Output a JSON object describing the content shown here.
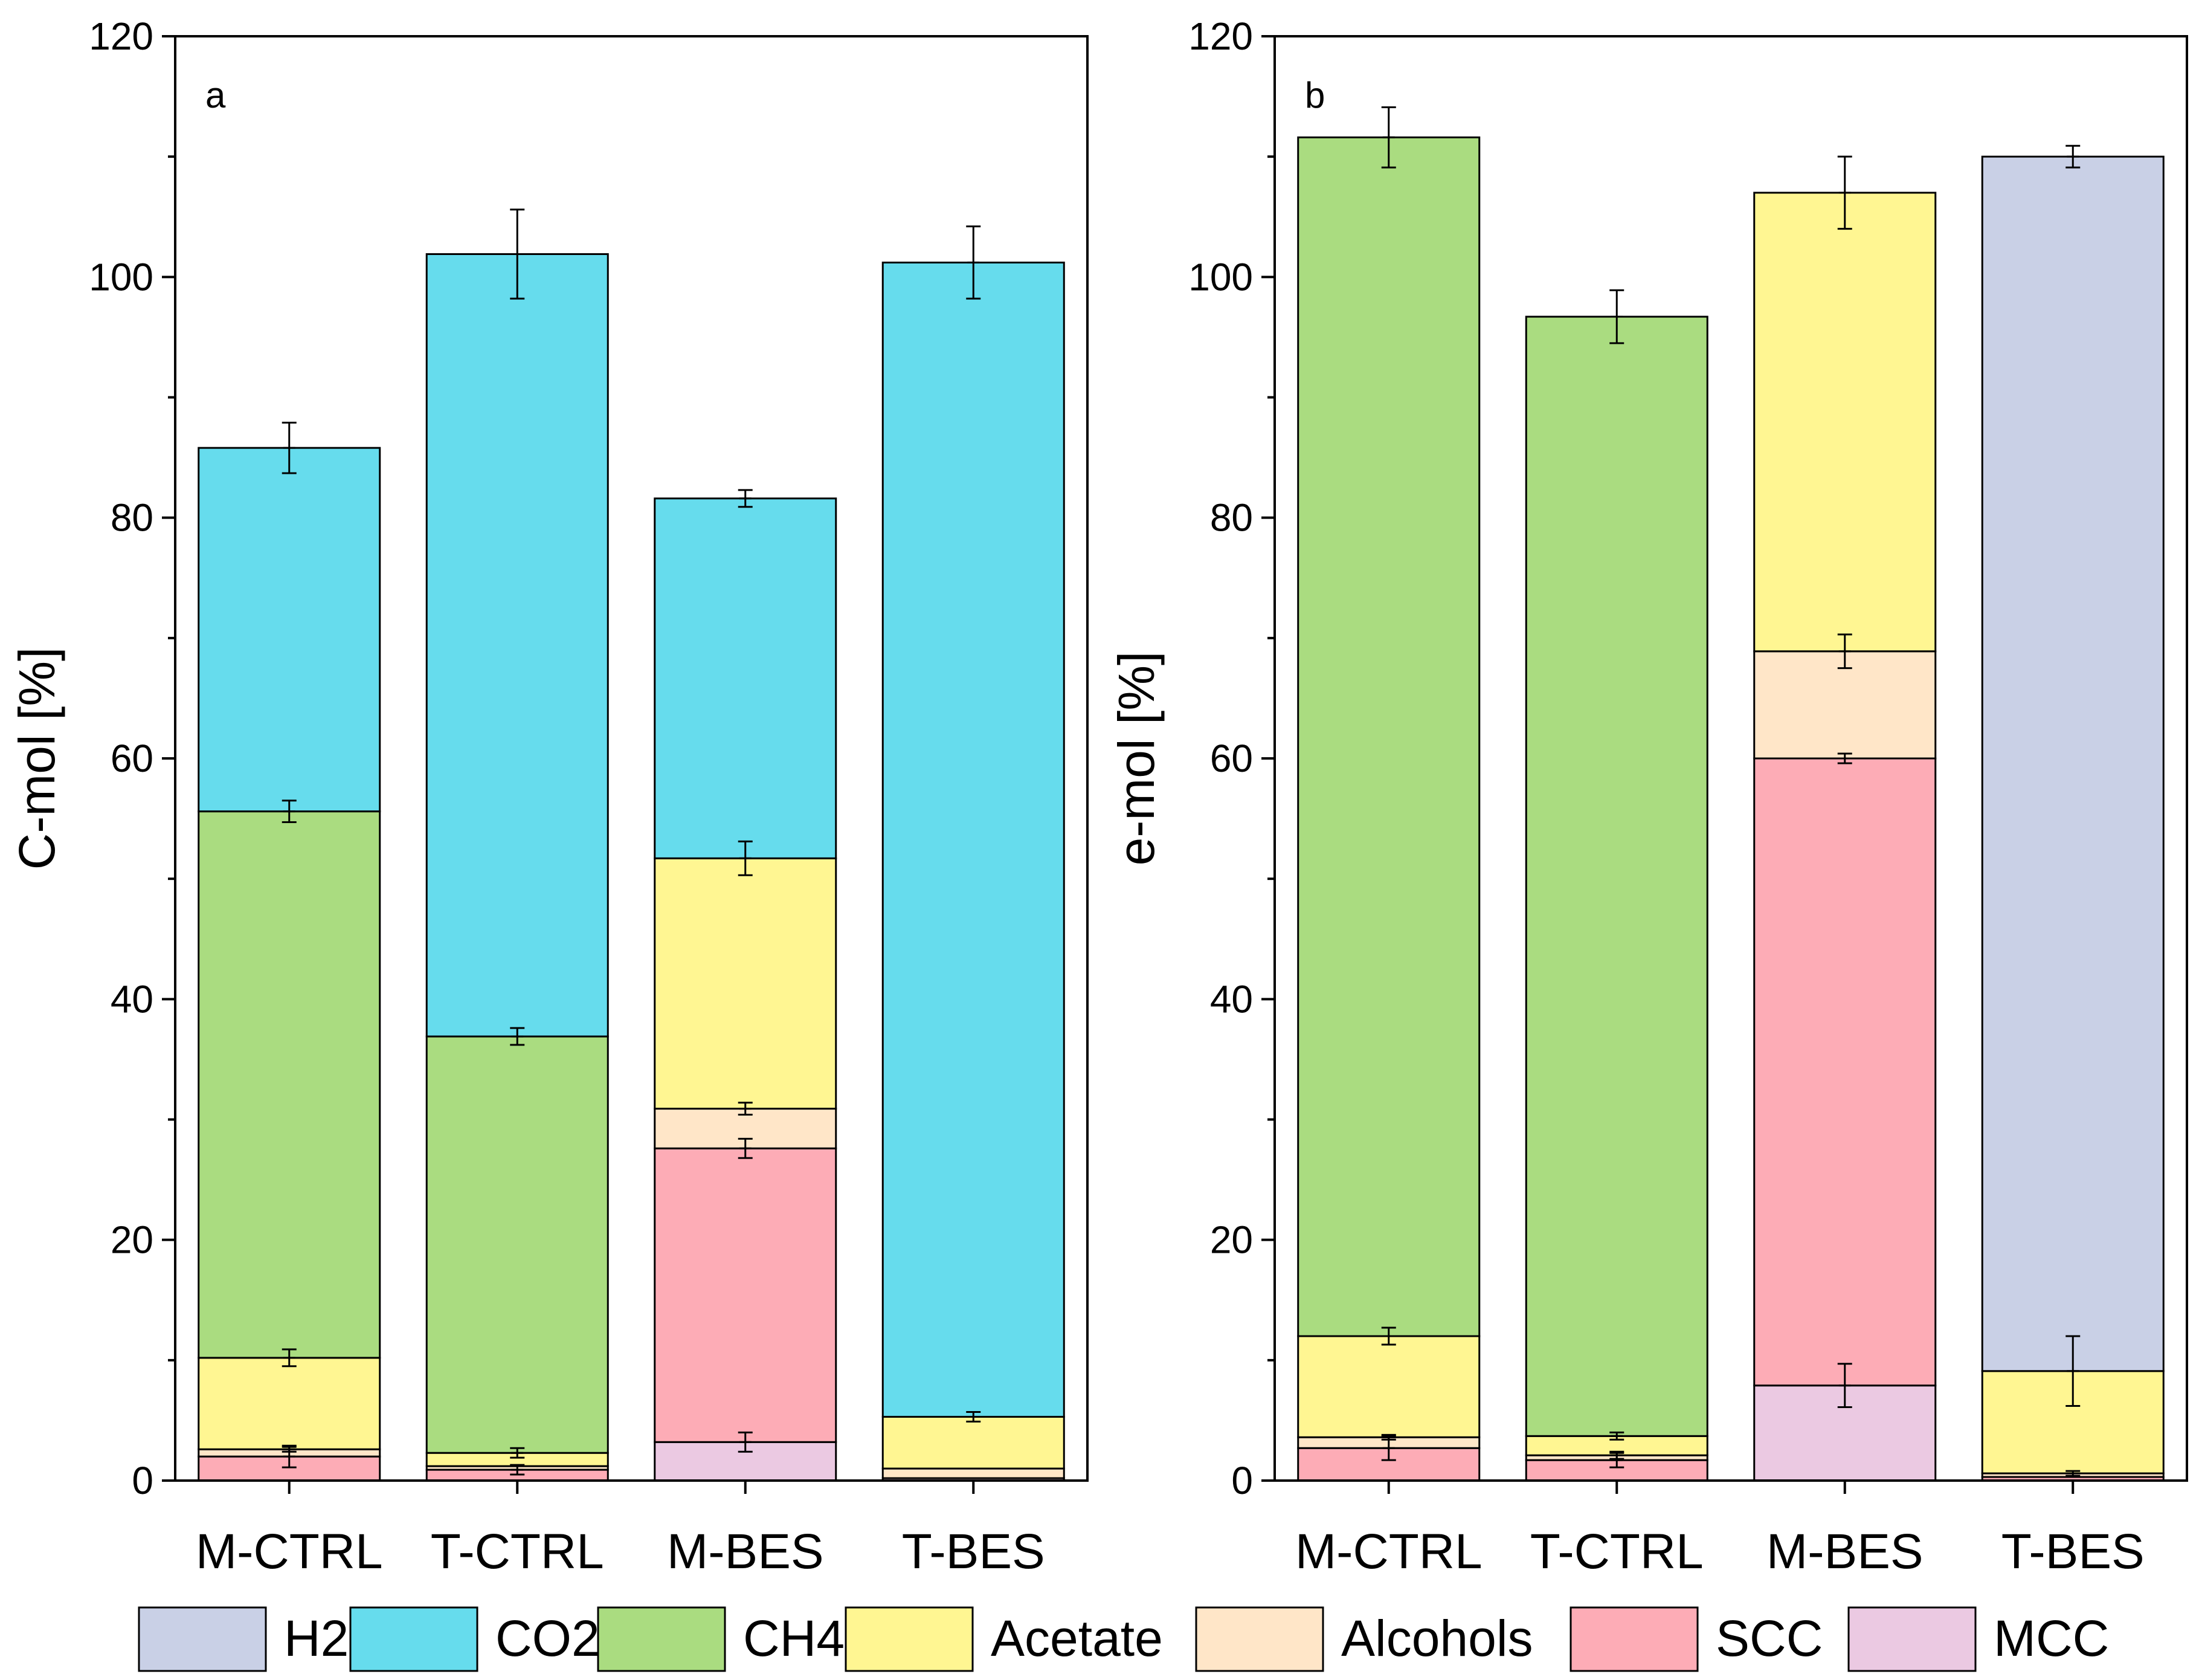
{
  "colors": {
    "H2": "#c9d0e6",
    "CO2": "#66dced",
    "CH4": "#aadc80",
    "Acetate": "#fff692",
    "Alcohols": "#ffe6c8",
    "SCC": "#fdacb6",
    "MCC": "#ebc9e2"
  },
  "legend": [
    "H2",
    "CO2",
    "CH4",
    "Acetate",
    "Alcohols",
    "SCC",
    "MCC"
  ],
  "chart_data": [
    {
      "type": "bar",
      "stacked": true,
      "panel_label": "a",
      "title": "",
      "xlabel": "",
      "ylabel": "C-mol [%]",
      "ylim": [
        0,
        120
      ],
      "yticks": [
        "0",
        "20",
        "40",
        "60",
        "80",
        "100",
        "120"
      ],
      "categories": [
        "M-CTRL",
        "T-CTRL",
        "M-BES",
        "T-BES"
      ],
      "series": [
        {
          "name": "MCC",
          "values": [
            0,
            0,
            3.2,
            0.2
          ],
          "errors": [
            0,
            0,
            0.8,
            0
          ]
        },
        {
          "name": "SCC",
          "values": [
            2.0,
            0.9,
            24.4,
            0
          ],
          "errors": [
            0.9,
            0.4,
            0.8,
            0
          ]
        },
        {
          "name": "Alcohols",
          "values": [
            0.6,
            0.3,
            3.3,
            0.8
          ],
          "errors": [
            0.2,
            0,
            0.5,
            0
          ]
        },
        {
          "name": "Acetate",
          "values": [
            7.6,
            1.1,
            20.8,
            4.3
          ],
          "errors": [
            0.7,
            0.4,
            1.4,
            0.4
          ]
        },
        {
          "name": "CH4",
          "values": [
            45.4,
            34.6,
            0,
            0
          ],
          "errors": [
            0.9,
            0.7,
            0,
            0
          ]
        },
        {
          "name": "CO2",
          "values": [
            30.2,
            65.0,
            29.9,
            95.9
          ],
          "errors": [
            2.1,
            3.7,
            0.7,
            3.0
          ]
        },
        {
          "name": "H2",
          "values": [
            0,
            0,
            0,
            0
          ],
          "errors": [
            0,
            0,
            0,
            0
          ]
        }
      ]
    },
    {
      "type": "bar",
      "stacked": true,
      "panel_label": "b",
      "title": "",
      "xlabel": "",
      "ylabel": "e-mol [%]",
      "ylim": [
        0,
        120
      ],
      "yticks": [
        "0",
        "20",
        "40",
        "60",
        "80",
        "100",
        "120"
      ],
      "categories": [
        "M-CTRL",
        "T-CTRL",
        "M-BES",
        "T-BES"
      ],
      "series": [
        {
          "name": "MCC",
          "values": [
            0,
            0,
            7.9,
            0
          ],
          "errors": [
            0,
            0,
            1.8,
            0
          ]
        },
        {
          "name": "SCC",
          "values": [
            2.7,
            1.7,
            52.1,
            0.3
          ],
          "errors": [
            1.0,
            0.6,
            0.4,
            0
          ]
        },
        {
          "name": "Alcohols",
          "values": [
            0.9,
            0.4,
            8.9,
            0.3
          ],
          "errors": [
            0.2,
            0.3,
            1.4,
            0.2
          ]
        },
        {
          "name": "Acetate",
          "values": [
            8.4,
            1.6,
            38.1,
            8.5
          ],
          "errors": [
            0.7,
            0.3,
            3.0,
            2.9
          ]
        },
        {
          "name": "CH4",
          "values": [
            99.6,
            93.0,
            0,
            0
          ],
          "errors": [
            2.5,
            2.2,
            0,
            0
          ]
        },
        {
          "name": "CO2",
          "values": [
            0,
            0,
            0,
            0
          ],
          "errors": [
            0,
            0,
            0,
            0
          ]
        },
        {
          "name": "H2",
          "values": [
            0,
            0,
            0,
            100.9
          ],
          "errors": [
            0,
            0,
            0,
            0.9
          ]
        }
      ]
    }
  ]
}
